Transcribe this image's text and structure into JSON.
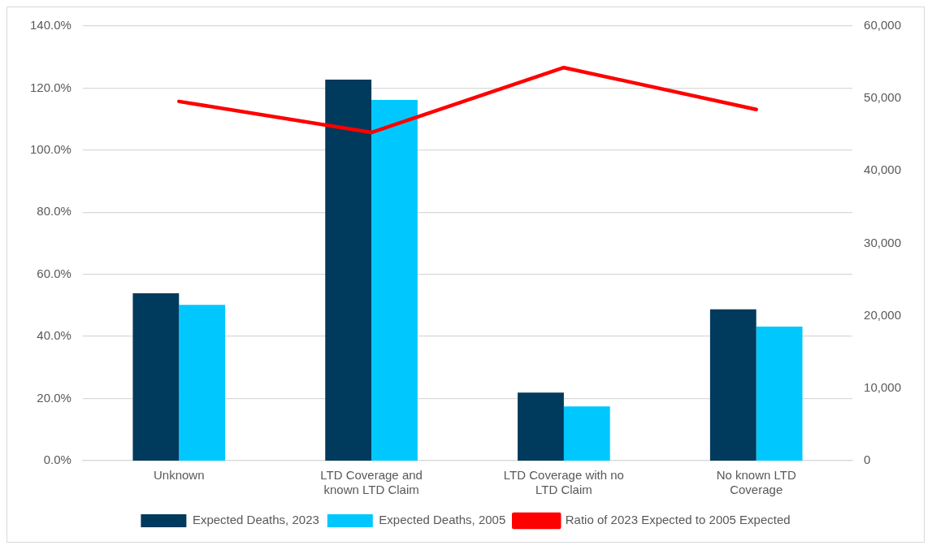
{
  "chart_data": {
    "type": "bar",
    "categories": [
      "Unknown",
      "LTD Coverage and known LTD Claim",
      "LTD Coverage with no LTD Claim",
      "No known LTD Coverage"
    ],
    "series": [
      {
        "name": "Expected Deaths, 2023",
        "color": "#003a5c",
        "axis": "y2",
        "values": [
          23100,
          52600,
          9400,
          20900
        ]
      },
      {
        "name": "Expected Deaths, 2005",
        "color": "#00c8ff",
        "axis": "y2",
        "values": [
          21500,
          49800,
          7500,
          18500
        ]
      },
      {
        "name": "Ratio of 2023 Expected to 2005 Expected",
        "type": "line",
        "color": "#ff0000",
        "axis": "y",
        "values": [
          115.7,
          105.7,
          126.6,
          113.1
        ]
      }
    ],
    "ylim": [
      0,
      140
    ],
    "yticks": [
      {
        "value": 0,
        "label": "0.0%"
      },
      {
        "value": 20,
        "label": "20.0%"
      },
      {
        "value": 40,
        "label": "40.0%"
      },
      {
        "value": 60,
        "label": "60.0%"
      },
      {
        "value": 80,
        "label": "80.0%"
      },
      {
        "value": 100,
        "label": "100.0%"
      },
      {
        "value": 120,
        "label": "120.0%"
      },
      {
        "value": 140,
        "label": "140.0%"
      }
    ],
    "y2lim": [
      0,
      60000
    ],
    "y2ticks": [
      0,
      {
        "value": 10000,
        "label": "10,000"
      },
      {
        "value": 20000,
        "label": "20,000"
      },
      {
        "value": 30000,
        "label": "30,000"
      },
      {
        "value": 40000,
        "label": "40,000"
      },
      {
        "value": 50000,
        "label": "50,000"
      },
      {
        "value": 60000,
        "label": "60,000"
      }
    ],
    "grid": "y",
    "legend": "bottom",
    "marker": "none",
    "line_style": "solid"
  }
}
